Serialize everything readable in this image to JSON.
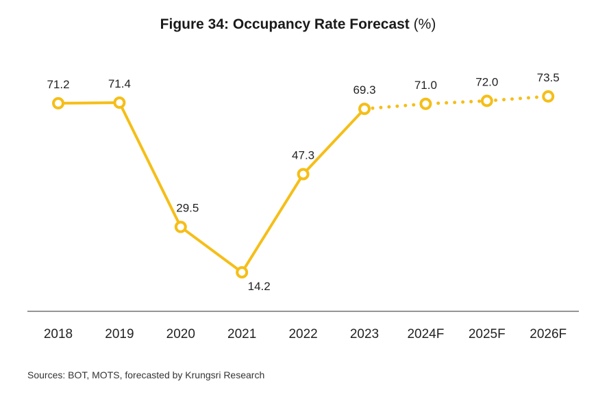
{
  "title": "Figure 34: Occupancy Rate Forecast",
  "title_unit": "(%)",
  "source": "Sources: BOT, MOTS, forecasted by Krungsri Research",
  "colors": {
    "series": "#F5BE18",
    "axis": "#555555"
  },
  "chart_data": {
    "type": "line",
    "title": "Figure 34: Occupancy Rate Forecast",
    "ylabel": "",
    "xlabel": "",
    "ylim": [
      0,
      80
    ],
    "grid": false,
    "categories": [
      "2018",
      "2019",
      "2020",
      "2021",
      "2022",
      "2023",
      "2024F",
      "2025F",
      "2026F"
    ],
    "series": [
      {
        "values": [
          71.2,
          71.4,
          29.5,
          14.2,
          47.3,
          69.3,
          71.0,
          72.0,
          73.5
        ],
        "labels": [
          "71.2",
          "71.4",
          "29.5",
          "14.2",
          "47.3",
          "69.3",
          "71.0",
          "72.0",
          "73.5"
        ],
        "solid_until_index": 5,
        "style_after": "dotted"
      }
    ]
  }
}
